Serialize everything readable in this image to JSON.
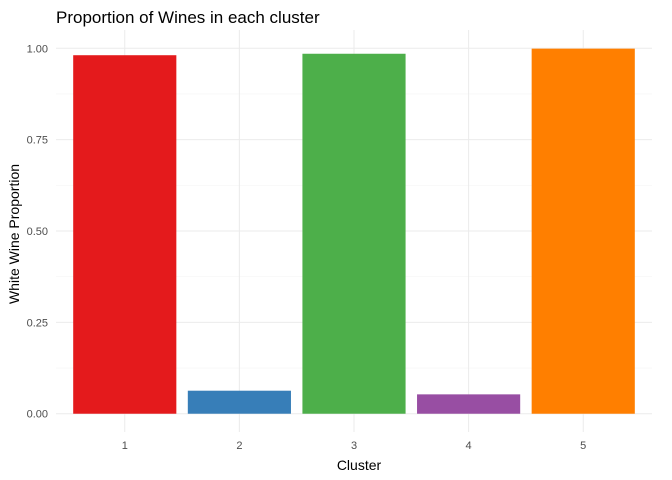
{
  "chart_data": {
    "type": "bar",
    "title": "Proportion of Wines in each cluster",
    "xlabel": "Cluster",
    "ylabel": "White Wine Proportion",
    "categories": [
      "1",
      "2",
      "3",
      "4",
      "5"
    ],
    "values": [
      0.981,
      0.063,
      0.985,
      0.053,
      0.999
    ],
    "colors": [
      "#E41A1C",
      "#377EB8",
      "#4DAF4A",
      "#984EA3",
      "#FF7F00"
    ],
    "ylim": [
      0,
      1.0
    ],
    "yticks": [
      0,
      0.25,
      0.5,
      0.75,
      1.0
    ],
    "ytick_labels": [
      "0.00",
      "0.25",
      "0.50",
      "0.75",
      "1.00"
    ],
    "grid": true,
    "legend": "none"
  }
}
